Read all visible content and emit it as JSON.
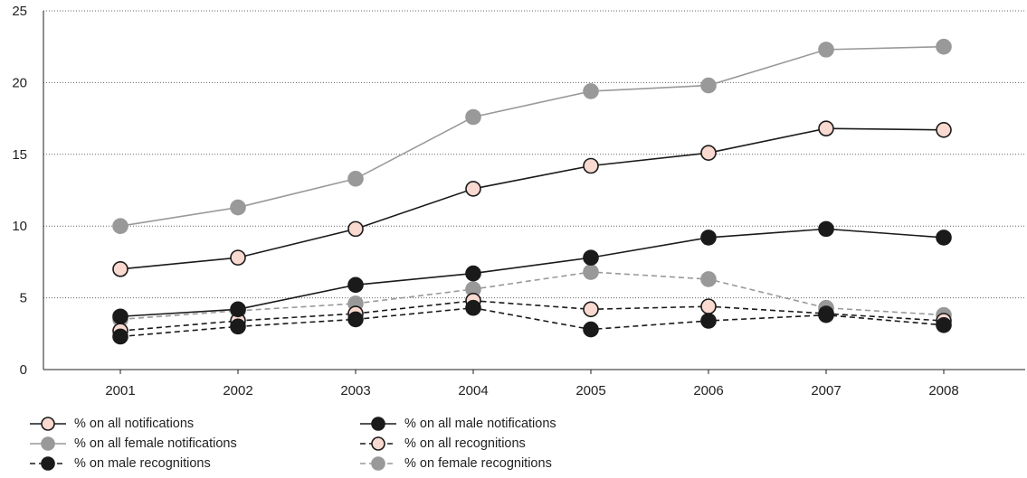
{
  "chart_data": {
    "type": "line",
    "x": [
      "2001",
      "2002",
      "2003",
      "2004",
      "2005",
      "2006",
      "2007",
      "2008"
    ],
    "ylim": [
      0,
      25
    ],
    "yticks": [
      0,
      5,
      10,
      15,
      20,
      25
    ],
    "grid": "horizontal dotted",
    "legend_position": "bottom",
    "series": [
      {
        "name": "% on all notifications",
        "values": [
          7.0,
          7.8,
          9.8,
          12.6,
          14.2,
          15.1,
          16.8,
          16.7
        ],
        "line": "solid",
        "line_color": "#1a1a1a",
        "marker_fill": "#f9d9d0",
        "marker_stroke": "#1a1a1a"
      },
      {
        "name": "% on all male notifications",
        "values": [
          3.7,
          4.2,
          5.9,
          6.7,
          7.8,
          9.2,
          9.8,
          9.2
        ],
        "line": "solid",
        "line_color": "#1a1a1a",
        "marker_fill": "#1a1a1a",
        "marker_stroke": "#1a1a1a"
      },
      {
        "name": "% on all female notifications",
        "values": [
          10.0,
          11.3,
          13.3,
          17.6,
          19.4,
          19.8,
          22.3,
          22.5
        ],
        "line": "solid",
        "line_color": "#999999",
        "marker_fill": "#999999",
        "marker_stroke": "#999999"
      },
      {
        "name": "% on all recognitions",
        "values": [
          2.7,
          3.4,
          3.9,
          4.8,
          4.2,
          4.4,
          3.9,
          3.4
        ],
        "line": "dashed",
        "line_color": "#1a1a1a",
        "marker_fill": "#f9d9d0",
        "marker_stroke": "#1a1a1a"
      },
      {
        "name": "% on male recognitions",
        "values": [
          2.3,
          3.0,
          3.5,
          4.3,
          2.8,
          3.4,
          3.8,
          3.1
        ],
        "line": "dashed",
        "line_color": "#1a1a1a",
        "marker_fill": "#1a1a1a",
        "marker_stroke": "#1a1a1a"
      },
      {
        "name": "% on female recognitions",
        "values": [
          3.5,
          4.1,
          4.6,
          5.6,
          6.8,
          6.3,
          4.3,
          3.8
        ],
        "line": "dashed",
        "line_color": "#999999",
        "marker_fill": "#999999",
        "marker_stroke": "#999999"
      }
    ]
  },
  "legend_order": [
    0,
    1,
    2,
    3,
    4,
    5
  ]
}
